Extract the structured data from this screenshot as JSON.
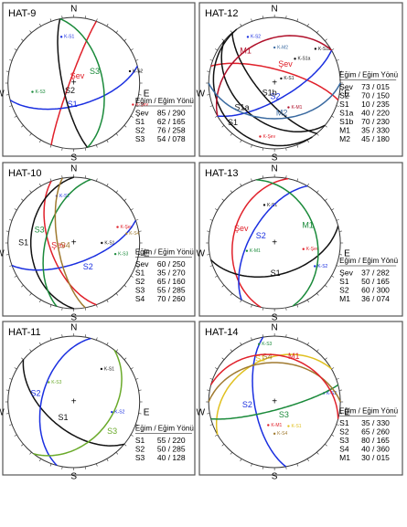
{
  "panels": [
    {
      "title": "HAT-9",
      "compass": [
        "N",
        "E",
        "S",
        "W"
      ],
      "table_header": "Eğim / Eğim Yönü",
      "rows": [
        {
          "name": "Şev",
          "value": "85 / 290",
          "color": "#e0202a",
          "pole": "K-Şev"
        },
        {
          "name": "S1",
          "value": "62 / 165",
          "color": "#1a2fe0",
          "pole": "K-S1"
        },
        {
          "name": "S2",
          "value": "76 / 258",
          "color": "#111111",
          "pole": "K-S2"
        },
        {
          "name": "S3",
          "value": "54 / 078",
          "color": "#1a8a3a",
          "pole": "K-S3"
        }
      ]
    },
    {
      "title": "HAT-12",
      "compass": [
        "N",
        "E",
        "S",
        "W"
      ],
      "table_header": "Eğim / Eğim Yönü",
      "rows": [
        {
          "name": "Şev",
          "value": "73 / 015",
          "color": "#e0202a",
          "pole": "K-Şev"
        },
        {
          "name": "S2",
          "value": "70 / 150",
          "color": "#1a2fe0",
          "pole": "K-S2"
        },
        {
          "name": "S1",
          "value": "10 / 235",
          "color": "#111111",
          "pole": "K-S1"
        },
        {
          "name": "S1a",
          "value": "40 / 220",
          "color": "#111111",
          "pole": "K-S1a"
        },
        {
          "name": "S1b",
          "value": "70 / 230",
          "color": "#111111",
          "pole": "K-S1b"
        },
        {
          "name": "M1",
          "value": "35 / 330",
          "color": "#b0102a",
          "pole": "K-M1"
        },
        {
          "name": "M2",
          "value": "45 / 180",
          "color": "#3a6aa0",
          "pole": "K-M2"
        }
      ]
    },
    {
      "title": "HAT-10",
      "compass": [
        "N",
        "E",
        "S",
        "W"
      ],
      "table_header": "Eğim / Eğim Yönü",
      "rows": [
        {
          "name": "Şev",
          "value": "60 / 250",
          "color": "#e0202a",
          "pole": "K-Şev"
        },
        {
          "name": "S1",
          "value": "35 / 270",
          "color": "#111111",
          "pole": "K-S1"
        },
        {
          "name": "S2",
          "value": "65 / 160",
          "color": "#1a2fe0",
          "pole": "K-S2"
        },
        {
          "name": "S3",
          "value": "55 / 285",
          "color": "#1a8a3a",
          "pole": "K-S3"
        },
        {
          "name": "S4",
          "value": "70 / 260",
          "color": "#a07a30",
          "pole": "K-S4"
        }
      ]
    },
    {
      "title": "HAT-13",
      "compass": [
        "N",
        "E",
        "S",
        "W"
      ],
      "table_header": "Eğim / Eğim Yönü",
      "rows": [
        {
          "name": "Şev",
          "value": "37 / 282",
          "color": "#e0202a",
          "pole": "K-Şev"
        },
        {
          "name": "S1",
          "value": "50 / 165",
          "color": "#111111",
          "pole": "K-S1"
        },
        {
          "name": "S2",
          "value": "60 / 300",
          "color": "#1a2fe0",
          "pole": "K-S2"
        },
        {
          "name": "M1",
          "value": "36 / 074",
          "color": "#1a8a3a",
          "pole": "K-M1"
        }
      ]
    },
    {
      "title": "HAT-11",
      "compass": [
        "N",
        "E",
        "S",
        "W"
      ],
      "table_header": "Eğim / Eğim Yönü",
      "rows": [
        {
          "name": "S1",
          "value": "55 / 220",
          "color": "#111111",
          "pole": "K-S1"
        },
        {
          "name": "S2",
          "value": "50 / 285",
          "color": "#1a2fe0",
          "pole": "K-S2"
        },
        {
          "name": "S3",
          "value": "40 / 128",
          "color": "#6aaa2a",
          "pole": "K-S3"
        }
      ]
    },
    {
      "title": "HAT-14",
      "compass": [
        "N",
        "E",
        "S",
        "W"
      ],
      "table_header": "Eğim / Eğim Yönü",
      "rows": [
        {
          "name": "S1",
          "value": "35 / 330",
          "color": "#e0c020",
          "pole": "K-S1"
        },
        {
          "name": "S2",
          "value": "65 / 260",
          "color": "#1a2fe0",
          "pole": "K-S2"
        },
        {
          "name": "S3",
          "value": "80 / 165",
          "color": "#1a8a3a",
          "pole": "K-S3"
        },
        {
          "name": "S4",
          "value": "40 / 360",
          "color": "#a07a30",
          "pole": "K-S4"
        },
        {
          "name": "M1",
          "value": "30 / 015",
          "color": "#e0202a",
          "pole": "K-M1"
        }
      ]
    }
  ]
}
